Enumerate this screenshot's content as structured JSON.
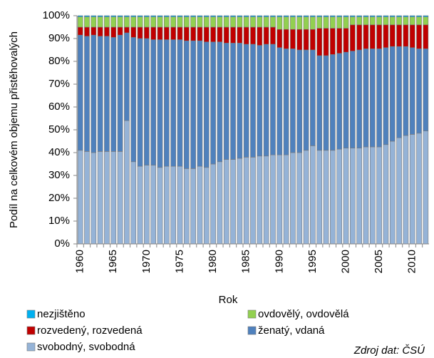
{
  "chart_data": {
    "type": "stacked_bar",
    "x_label": "Rok",
    "y_label": "Podíl na celkovém objemu přistěhovalých",
    "source": "Zdroj dat: ČSÚ",
    "categories": [
      "1960",
      null,
      null,
      null,
      null,
      "1965",
      null,
      null,
      null,
      null,
      "1970",
      null,
      null,
      null,
      null,
      "1975",
      null,
      null,
      null,
      null,
      "1980",
      null,
      null,
      null,
      null,
      "1985",
      null,
      null,
      null,
      null,
      "1990",
      null,
      null,
      null,
      null,
      "1995",
      null,
      null,
      null,
      null,
      "2000",
      null,
      null,
      null,
      null,
      "2005",
      null,
      null,
      null,
      null,
      "2010",
      null,
      null
    ],
    "ylim": [
      0,
      100
    ],
    "yticks": [
      {
        "value": 0,
        "label": "0%"
      },
      {
        "value": 10,
        "label": "10%"
      },
      {
        "value": 20,
        "label": "20%"
      },
      {
        "value": 30,
        "label": "30%"
      },
      {
        "value": 40,
        "label": "40%"
      },
      {
        "value": 50,
        "label": "50%"
      },
      {
        "value": 60,
        "label": "60%"
      },
      {
        "value": 70,
        "label": "70%"
      },
      {
        "value": 80,
        "label": "80%"
      },
      {
        "value": 90,
        "label": "90%"
      },
      {
        "value": 100,
        "label": "100%"
      }
    ],
    "series": [
      {
        "name": "svobodný, svobodná",
        "color": "#95b3d7",
        "values": [
          41,
          40.5,
          40,
          40.5,
          40.5,
          40.5,
          40.5,
          54,
          36,
          34,
          34.5,
          34.5,
          33.5,
          34,
          34,
          34,
          33,
          33,
          34,
          33.5,
          35,
          36,
          37,
          37,
          37.5,
          38,
          38,
          38.5,
          38.5,
          39,
          39,
          39,
          40,
          40,
          41,
          43,
          41,
          41,
          41,
          41.5,
          42,
          42,
          42,
          42.5,
          42.5,
          42.5,
          43.5,
          45,
          46.5,
          47.5,
          48,
          48.5,
          49.5
        ]
      },
      {
        "name": "ženatý, vdaná",
        "color": "#4f81bd",
        "values": [
          50.5,
          50.5,
          51.5,
          50.5,
          50.5,
          50,
          51,
          38.5,
          54.5,
          56,
          55.5,
          55,
          56,
          55.5,
          55.5,
          55.5,
          56,
          56,
          55,
          55,
          53.5,
          52.5,
          51,
          51,
          50.5,
          49.5,
          49.5,
          48.5,
          49,
          48.5,
          47,
          46.5,
          45.5,
          45,
          44,
          42,
          41.5,
          41.5,
          42,
          42,
          42,
          42.5,
          43,
          43,
          43,
          43,
          42.5,
          41.5,
          40,
          39,
          38,
          37,
          36
        ]
      },
      {
        "name": "rozvedený, rozvedená",
        "color": "#c00000",
        "values": [
          3.5,
          4,
          3.5,
          4,
          4,
          4.5,
          3.5,
          2.5,
          4.5,
          5,
          5,
          5.5,
          5.5,
          5.5,
          5.5,
          5.5,
          6,
          6,
          6,
          6.5,
          6.5,
          6.5,
          7,
          7,
          7,
          7.5,
          7.5,
          8,
          7.5,
          7.5,
          8,
          8.5,
          8.5,
          9,
          9,
          9,
          12,
          12,
          11.5,
          11,
          10.5,
          11.5,
          11,
          10.5,
          10.5,
          10.5,
          10,
          9.5,
          9.5,
          9.5,
          10,
          10.5,
          10.5
        ]
      },
      {
        "name": "ovdovělý, ovdovělá",
        "color": "#92d050",
        "values": [
          4.5,
          4.5,
          4.5,
          4.5,
          4.5,
          4.5,
          4.5,
          4.5,
          4.5,
          4.5,
          4.5,
          4.5,
          4.5,
          4.5,
          4.5,
          4.5,
          4.5,
          4.5,
          4.5,
          4.5,
          4.5,
          4.5,
          4.5,
          4.5,
          4.5,
          4.5,
          4.5,
          4.5,
          4.5,
          4.5,
          5.5,
          5.5,
          5.5,
          5.5,
          5.5,
          5.5,
          5,
          5,
          5,
          5,
          5,
          3.5,
          3.5,
          3.5,
          3.5,
          3.5,
          3.5,
          3.5,
          3.5,
          3.5,
          3.5,
          3.5,
          3.5
        ]
      },
      {
        "name": "nezjištěno",
        "color": "#00b0f0",
        "values": [
          0.5,
          0.5,
          0.5,
          0.5,
          0.5,
          0.5,
          0.5,
          0.5,
          0.5,
          0.5,
          0.5,
          0.5,
          0.5,
          0.5,
          0.5,
          0.5,
          0.5,
          0.5,
          0.5,
          0.5,
          0.5,
          0.5,
          0.5,
          0.5,
          0.5,
          0.5,
          0.5,
          0.5,
          0.5,
          0.5,
          0.5,
          0.5,
          0.5,
          0.5,
          0.5,
          0.5,
          0.5,
          0.5,
          0.5,
          0.5,
          0.5,
          0.5,
          0.5,
          0.5,
          0.5,
          0.5,
          0.5,
          0.5,
          0.5,
          0.5,
          0.5,
          0.5,
          0.5
        ]
      }
    ]
  }
}
